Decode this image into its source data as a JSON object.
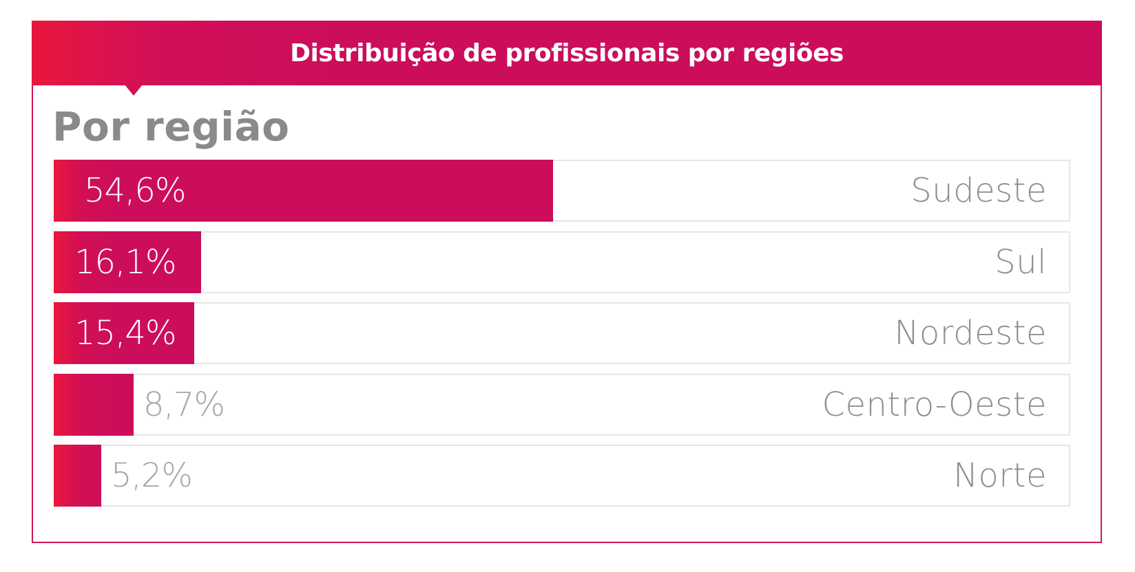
{
  "header": {
    "title": "Distribuição de profissionais por regiões"
  },
  "colors": {
    "accent": "#cc0d5b",
    "accent_start": "#e8173e",
    "label_gray": "#8f8f8f",
    "track_border": "#e6e6e6"
  },
  "chart_data": {
    "type": "bar",
    "orientation": "horizontal",
    "title": "Por região",
    "categories": [
      "Sudeste",
      "Sul",
      "Nordeste",
      "Centro-Oeste",
      "Norte"
    ],
    "values": [
      54.6,
      16.1,
      15.4,
      8.7,
      5.2
    ],
    "value_labels": [
      "54,6%",
      "16,1%",
      "15,4%",
      "8,7%",
      "5,2%"
    ],
    "unit": "%",
    "xlim": [
      0,
      100
    ],
    "grid": false,
    "legend": "none"
  }
}
